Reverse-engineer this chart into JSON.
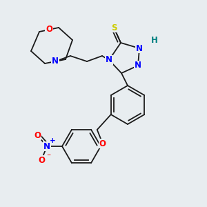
{
  "background_color": "#e8edf0",
  "bond_color": "#1a1a1a",
  "atom_colors": {
    "N": "#0000ff",
    "O": "#ff0000",
    "S": "#cccc00",
    "H": "#008080",
    "C": "#1a1a1a"
  },
  "figsize": [
    3.0,
    3.0
  ],
  "dpi": 100
}
